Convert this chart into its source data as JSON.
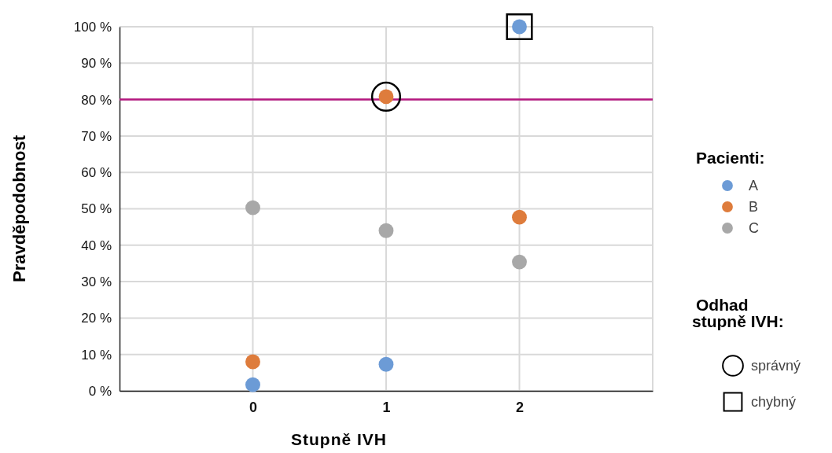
{
  "chart_data": {
    "type": "scatter",
    "xlabel": "Stupně IVH",
    "ylabel": "Pravděpodobnost",
    "legend_title": "Pacienti:",
    "annotations": [
      "Odhad stupně IVH:"
    ],
    "xlim": [
      -1,
      3
    ],
    "xticks": [
      0,
      1,
      2
    ],
    "ylim": [
      0,
      100
    ],
    "yticks": [
      {
        "value": 0,
        "label": "0 %"
      },
      {
        "value": 10,
        "label": "10 %"
      },
      {
        "value": 20,
        "label": "20 %"
      },
      {
        "value": 30,
        "label": "30 %"
      },
      {
        "value": 40,
        "label": "40 %"
      },
      {
        "value": 50,
        "label": "50 %"
      },
      {
        "value": 60,
        "label": "60 %"
      },
      {
        "value": 70,
        "label": "70 %"
      },
      {
        "value": 80,
        "label": "80 %"
      },
      {
        "value": 90,
        "label": "90 %"
      },
      {
        "value": 100,
        "label": "100 %"
      }
    ],
    "grid": true,
    "legend": "right",
    "marker": "circle",
    "ref_lines": [
      {
        "axis": "y",
        "value": 80,
        "color": "#b5177f"
      }
    ],
    "series": [
      {
        "name": "A",
        "color": "#6c9bd6",
        "x": [
          0,
          1,
          2
        ],
        "values": [
          1.7,
          7.3,
          100
        ]
      },
      {
        "name": "B",
        "color": "#de7c3c",
        "x": [
          0,
          1,
          2
        ],
        "values": [
          8,
          80.8,
          47.7
        ]
      },
      {
        "name": "C",
        "color": "#a8a8a8",
        "x": [
          0,
          1,
          2
        ],
        "values": [
          50.3,
          44,
          35.4
        ]
      },
      {
        "name": "správný",
        "color": "#000000",
        "marker": "circle",
        "x": [
          1
        ],
        "values": [
          80.8
        ]
      },
      {
        "name": "chybný",
        "color": "#000000",
        "marker": "square",
        "x": [
          2
        ],
        "values": [
          100
        ]
      }
    ]
  }
}
